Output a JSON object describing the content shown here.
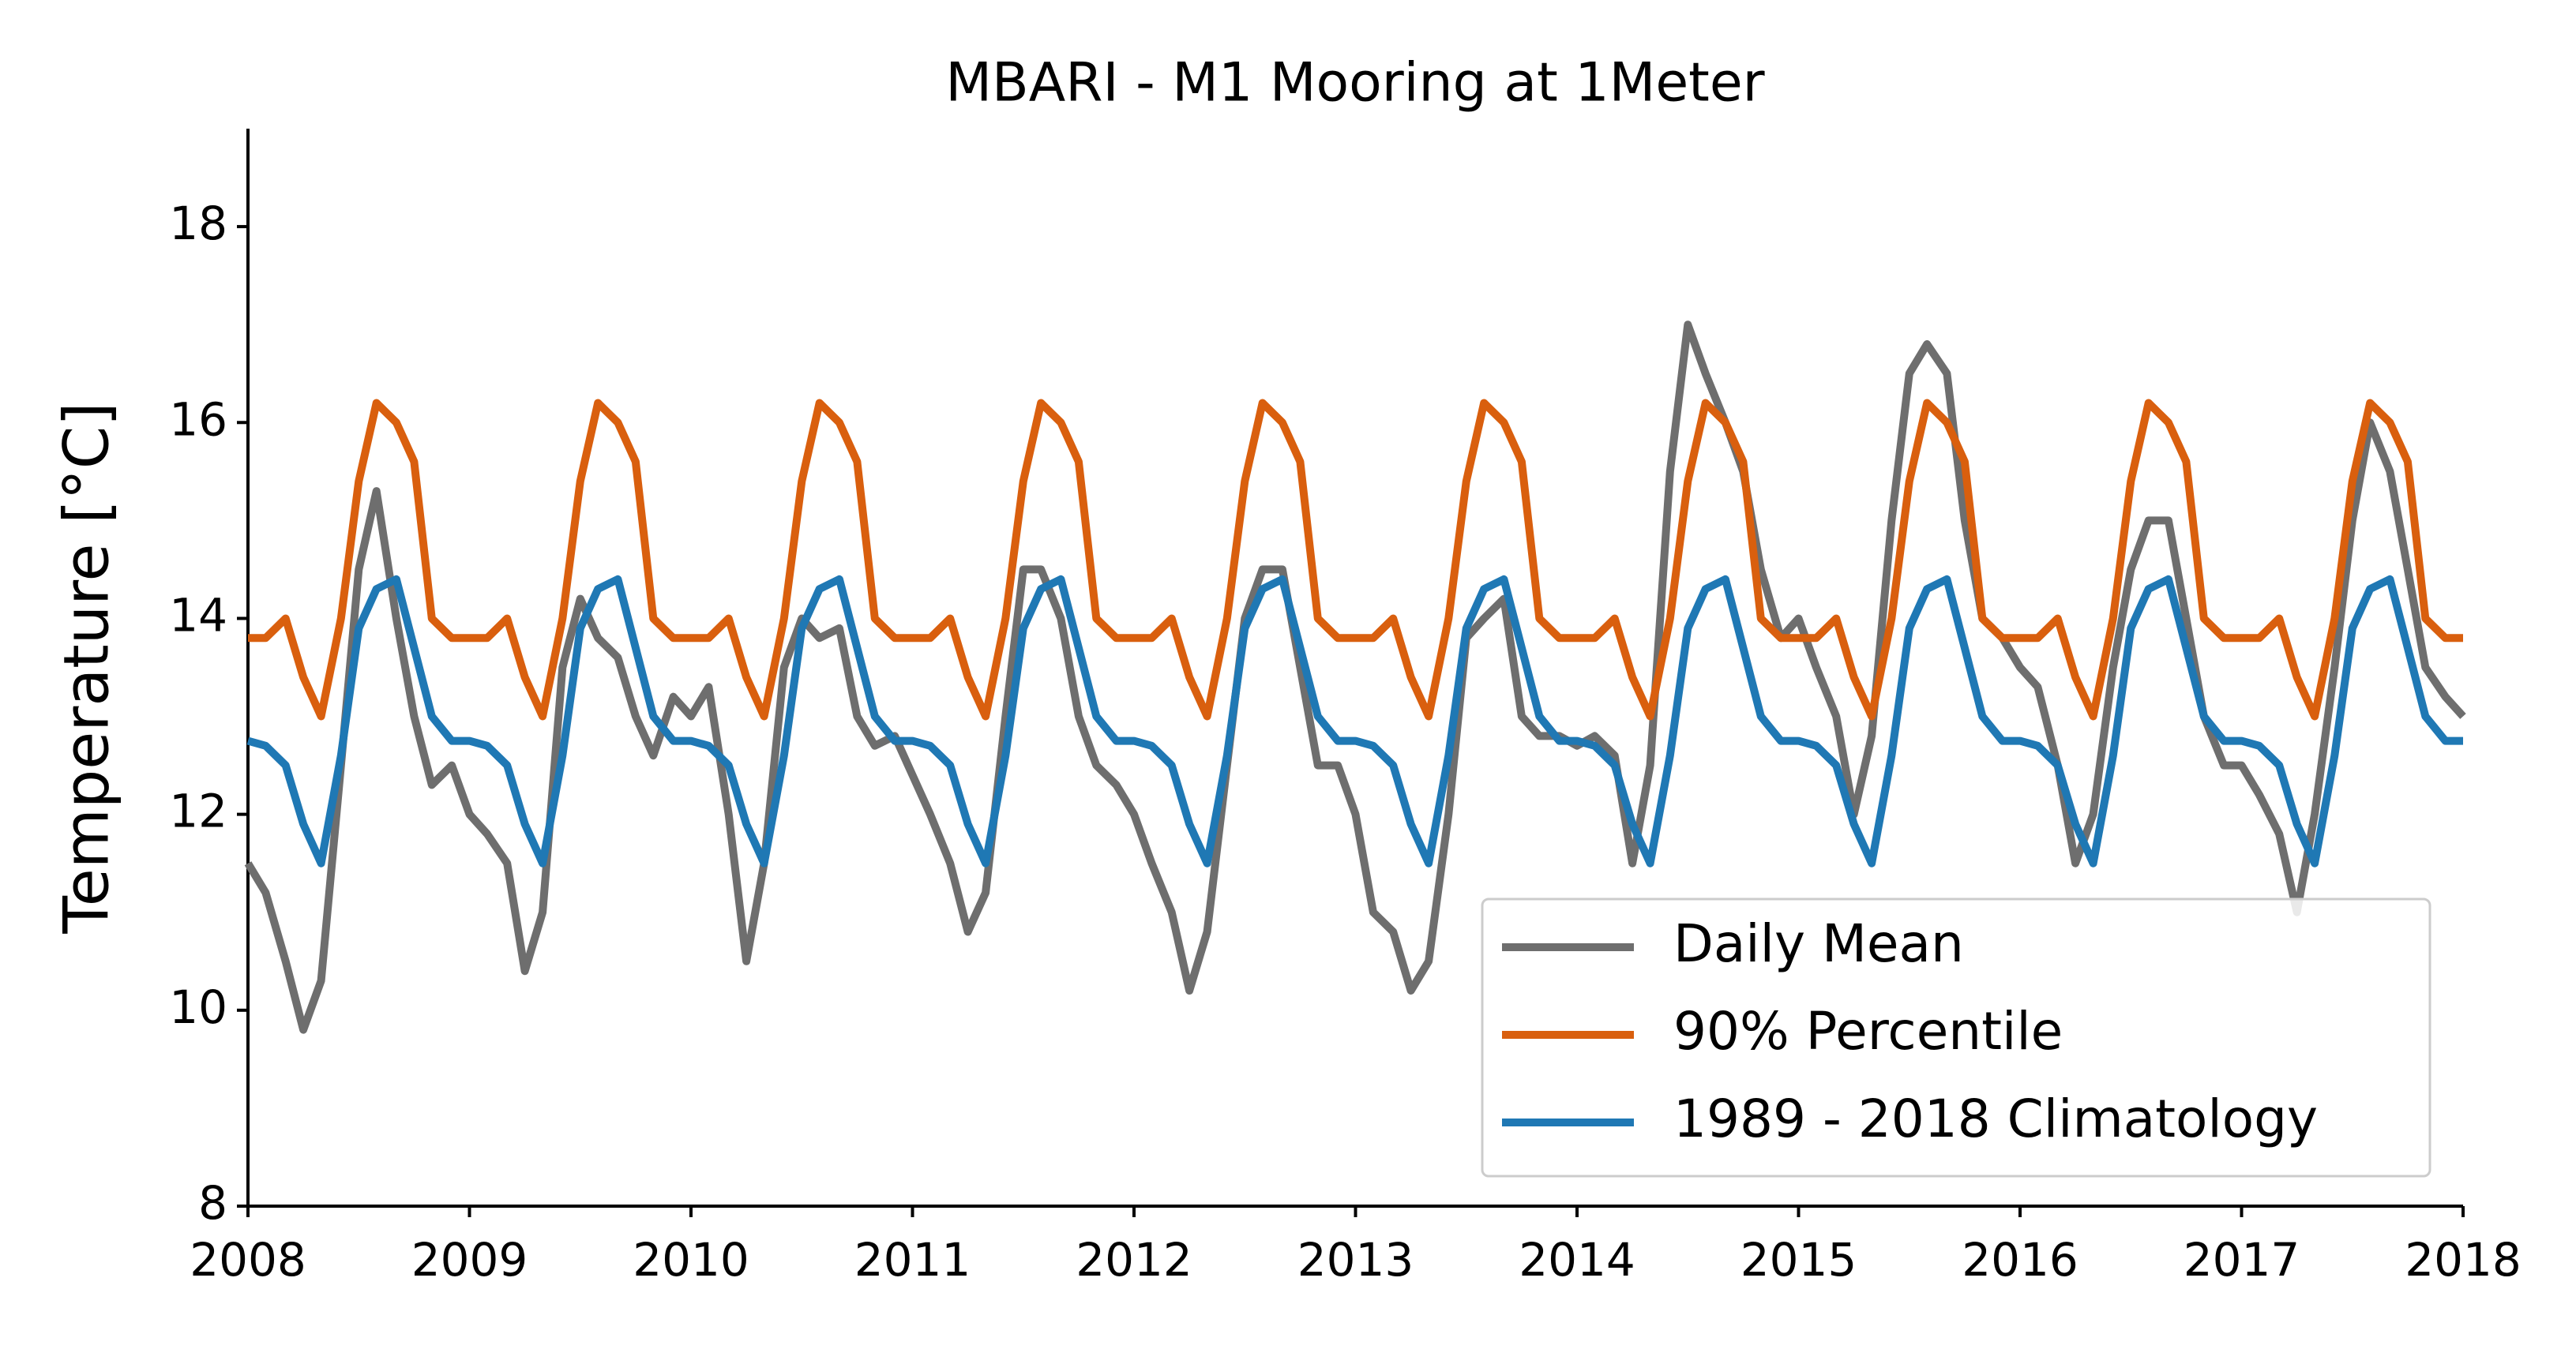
{
  "chart_data": {
    "type": "line",
    "title": "MBARI - M1 Mooring at 1Meter",
    "y_label": "Temperature [°C]",
    "x": [
      2008,
      2008.08,
      2008.17,
      2008.25,
      2008.33,
      2008.42,
      2008.5,
      2008.58,
      2008.67,
      2008.75,
      2008.83,
      2008.92,
      2009,
      2009.08,
      2009.17,
      2009.25,
      2009.33,
      2009.42,
      2009.5,
      2009.58,
      2009.67,
      2009.75,
      2009.83,
      2009.92,
      2010,
      2010.08,
      2010.17,
      2010.25,
      2010.33,
      2010.42,
      2010.5,
      2010.58,
      2010.67,
      2010.75,
      2010.83,
      2010.92,
      2011,
      2011.08,
      2011.17,
      2011.25,
      2011.33,
      2011.42,
      2011.5,
      2011.58,
      2011.67,
      2011.75,
      2011.83,
      2011.92,
      2012,
      2012.08,
      2012.17,
      2012.25,
      2012.33,
      2012.42,
      2012.5,
      2012.58,
      2012.67,
      2012.75,
      2012.83,
      2012.92,
      2013,
      2013.08,
      2013.17,
      2013.25,
      2013.33,
      2013.42,
      2013.5,
      2013.58,
      2013.67,
      2013.75,
      2013.83,
      2013.92,
      2014,
      2014.08,
      2014.17,
      2014.25,
      2014.33,
      2014.42,
      2014.5,
      2014.58,
      2014.67,
      2014.75,
      2014.83,
      2014.92,
      2015,
      2015.08,
      2015.17,
      2015.25,
      2015.33,
      2015.42,
      2015.5,
      2015.58,
      2015.67,
      2015.75,
      2015.83,
      2015.92,
      2016,
      2016.08,
      2016.17,
      2016.25,
      2016.33,
      2016.42,
      2016.5,
      2016.58,
      2016.67,
      2016.75,
      2016.83,
      2016.92,
      2017,
      2017.08,
      2017.17,
      2017.25,
      2017.33,
      2017.42,
      2017.5,
      2017.58,
      2017.67,
      2017.75,
      2017.83,
      2017.92,
      2018
    ],
    "series": [
      {
        "name": "Daily Mean",
        "color": "#6e6e6e",
        "values": [
          11.5,
          11.2,
          10.5,
          9.8,
          10.3,
          12.5,
          14.5,
          15.3,
          14.0,
          13.0,
          12.3,
          12.5,
          12.0,
          11.8,
          11.5,
          10.4,
          11.0,
          13.5,
          14.2,
          13.8,
          13.6,
          13.0,
          12.6,
          13.2,
          13.0,
          13.3,
          12.0,
          10.5,
          11.5,
          13.5,
          14.0,
          13.8,
          13.9,
          13.0,
          12.7,
          12.8,
          12.4,
          12.0,
          11.5,
          10.8,
          11.2,
          13.0,
          14.5,
          14.5,
          14.0,
          13.0,
          12.5,
          12.3,
          12.0,
          11.5,
          11.0,
          10.2,
          10.8,
          12.5,
          14.0,
          14.5,
          14.5,
          13.5,
          12.5,
          12.5,
          12.0,
          11.0,
          10.8,
          10.2,
          10.5,
          12.0,
          13.8,
          14.0,
          14.2,
          13.0,
          12.8,
          12.8,
          12.7,
          12.8,
          12.6,
          11.5,
          12.5,
          15.5,
          17.0,
          16.5,
          16.0,
          15.5,
          14.5,
          13.8,
          14.0,
          13.5,
          13.0,
          12.0,
          12.8,
          15.0,
          16.5,
          16.8,
          16.5,
          15.0,
          14.0,
          13.8,
          13.5,
          13.3,
          12.5,
          11.5,
          12.0,
          13.5,
          14.5,
          15.0,
          15.0,
          14.0,
          13.0,
          12.5,
          12.5,
          12.2,
          11.8,
          11.0,
          12.0,
          13.5,
          15.0,
          16.0,
          15.5,
          14.5,
          13.5,
          13.2,
          13.0
        ]
      },
      {
        "name": "90% Percentile",
        "color": "#d95f0e",
        "values": [
          13.8,
          13.8,
          14.0,
          13.4,
          13.0,
          14.0,
          15.4,
          16.2,
          16.0,
          15.6,
          14.0,
          13.8,
          13.8,
          13.8,
          14.0,
          13.4,
          13.0,
          14.0,
          15.4,
          16.2,
          16.0,
          15.6,
          14.0,
          13.8,
          13.8,
          13.8,
          14.0,
          13.4,
          13.0,
          14.0,
          15.4,
          16.2,
          16.0,
          15.6,
          14.0,
          13.8,
          13.8,
          13.8,
          14.0,
          13.4,
          13.0,
          14.0,
          15.4,
          16.2,
          16.0,
          15.6,
          14.0,
          13.8,
          13.8,
          13.8,
          14.0,
          13.4,
          13.0,
          14.0,
          15.4,
          16.2,
          16.0,
          15.6,
          14.0,
          13.8,
          13.8,
          13.8,
          14.0,
          13.4,
          13.0,
          14.0,
          15.4,
          16.2,
          16.0,
          15.6,
          14.0,
          13.8,
          13.8,
          13.8,
          14.0,
          13.4,
          13.0,
          14.0,
          15.4,
          16.2,
          16.0,
          15.6,
          14.0,
          13.8,
          13.8,
          13.8,
          14.0,
          13.4,
          13.0,
          14.0,
          15.4,
          16.2,
          16.0,
          15.6,
          14.0,
          13.8,
          13.8,
          13.8,
          14.0,
          13.4,
          13.0,
          14.0,
          15.4,
          16.2,
          16.0,
          15.6,
          14.0,
          13.8,
          13.8,
          13.8,
          14.0,
          13.4,
          13.0,
          14.0,
          15.4,
          16.2,
          16.0,
          15.6,
          14.0,
          13.8,
          13.8
        ]
      },
      {
        "name": "1989 - 2018 Climatology",
        "color": "#1f78b4",
        "values": [
          12.75,
          12.7,
          12.5,
          11.9,
          11.5,
          12.6,
          13.9,
          14.3,
          14.4,
          13.7,
          13.0,
          12.75,
          12.75,
          12.7,
          12.5,
          11.9,
          11.5,
          12.6,
          13.9,
          14.3,
          14.4,
          13.7,
          13.0,
          12.75,
          12.75,
          12.7,
          12.5,
          11.9,
          11.5,
          12.6,
          13.9,
          14.3,
          14.4,
          13.7,
          13.0,
          12.75,
          12.75,
          12.7,
          12.5,
          11.9,
          11.5,
          12.6,
          13.9,
          14.3,
          14.4,
          13.7,
          13.0,
          12.75,
          12.75,
          12.7,
          12.5,
          11.9,
          11.5,
          12.6,
          13.9,
          14.3,
          14.4,
          13.7,
          13.0,
          12.75,
          12.75,
          12.7,
          12.5,
          11.9,
          11.5,
          12.6,
          13.9,
          14.3,
          14.4,
          13.7,
          13.0,
          12.75,
          12.75,
          12.7,
          12.5,
          11.9,
          11.5,
          12.6,
          13.9,
          14.3,
          14.4,
          13.7,
          13.0,
          12.75,
          12.75,
          12.7,
          12.5,
          11.9,
          11.5,
          12.6,
          13.9,
          14.3,
          14.4,
          13.7,
          13.0,
          12.75,
          12.75,
          12.7,
          12.5,
          11.9,
          11.5,
          12.6,
          13.9,
          14.3,
          14.4,
          13.7,
          13.0,
          12.75,
          12.75,
          12.7,
          12.5,
          11.9,
          11.5,
          12.6,
          13.9,
          14.3,
          14.4,
          13.7,
          13.0,
          12.75,
          12.75
        ]
      }
    ],
    "xlim": [
      2008,
      2018
    ],
    "xticks": [
      2008,
      2009,
      2010,
      2011,
      2012,
      2013,
      2014,
      2015,
      2016,
      2017,
      2018
    ],
    "ylim": [
      8,
      19
    ],
    "yticks": [
      8,
      10,
      12,
      14,
      16,
      18
    ],
    "grid": false,
    "legend": "lower right"
  }
}
